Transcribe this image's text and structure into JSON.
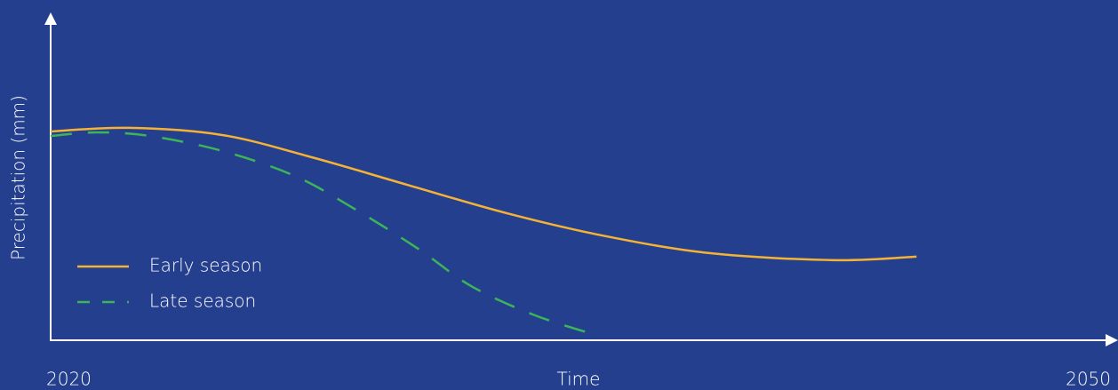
{
  "chart_data": {
    "type": "line",
    "xlabel": "Time",
    "ylabel": "Precipitation (mm)",
    "xlim": [
      2020,
      2050
    ],
    "xticks": [
      2020,
      2050
    ],
    "ylim": [
      0,
      100
    ],
    "legend": "lower-left",
    "series": [
      {
        "name": "Early season",
        "color": "#f5b335",
        "dash": "solid",
        "x": [
          2020,
          2022.2,
          2024.85,
          2027.4,
          2030.1,
          2032.9,
          2035.7,
          2038.7,
          2042.2,
          2044.5
        ],
        "values": [
          64.4,
          65.5,
          63.3,
          56.4,
          47.9,
          39.2,
          32.1,
          26.8,
          24.7,
          25.8
        ]
      },
      {
        "name": "Late season",
        "color": "#3cb558",
        "dash": "dashed",
        "x": [
          2020,
          2021.3,
          2022.8,
          2024.85,
          2026.9,
          2028.6,
          2030.4,
          2031.9,
          2033.7,
          2035.5
        ],
        "values": [
          63.0,
          64.1,
          63.0,
          58.4,
          50.7,
          40.5,
          28.2,
          16.7,
          7.7,
          1.4
        ]
      }
    ]
  }
}
